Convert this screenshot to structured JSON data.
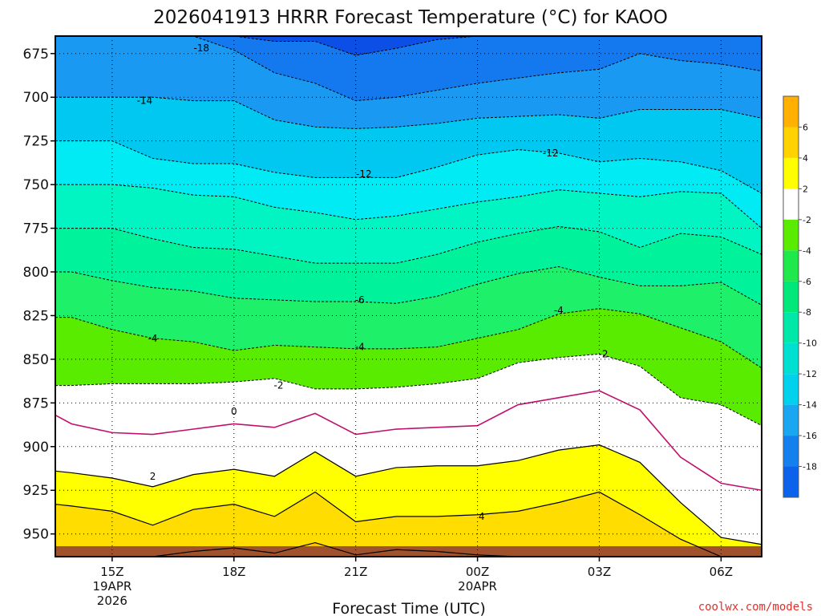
{
  "chart_data": {
    "type": "contour",
    "title": "2026041913 HRRR Forecast Temperature (°C) for KAOO",
    "xlabel": "Forecast Time (UTC)",
    "credit": "coolwx.com/models",
    "y_axis": {
      "ticks": [
        "675",
        "700",
        "725",
        "750",
        "775",
        "800",
        "825",
        "850",
        "875",
        "900",
        "925",
        "950"
      ],
      "range": [
        665,
        963
      ]
    },
    "x_axis": {
      "ticks": [
        {
          "line1": "15Z",
          "line2": "19APR",
          "line3": "2026"
        },
        {
          "line1": "18Z",
          "line2": "",
          "line3": ""
        },
        {
          "line1": "21Z",
          "line2": "",
          "line3": ""
        },
        {
          "line1": "00Z",
          "line2": "20APR",
          "line3": ""
        },
        {
          "line1": "03Z",
          "line2": "",
          "line3": ""
        },
        {
          "line1": "06Z",
          "line2": "",
          "line3": ""
        }
      ],
      "hours_from_start": [
        2,
        5,
        8,
        11,
        14,
        17
      ],
      "range_hours": [
        0.6,
        18.0
      ],
      "grid": true
    },
    "hours": [
      0.6,
      1.0,
      2.0,
      3.0,
      4.0,
      5.0,
      6.0,
      7.0,
      8.0,
      9.0,
      10.0,
      11.0,
      12.0,
      13.0,
      14.0,
      15.0,
      16.0,
      17.0,
      18.0
    ],
    "isotherms": [
      {
        "value": -18,
        "levels": [
          665,
          665,
          665,
          665,
          665,
          665,
          668,
          668,
          676,
          672,
          667,
          665,
          665,
          665,
          665,
          665,
          665,
          665,
          665
        ]
      },
      {
        "value": -16,
        "levels": [
          665,
          665,
          665,
          665,
          665,
          673,
          686,
          692,
          702,
          700,
          696,
          692,
          689,
          686,
          684,
          675,
          679,
          681,
          685
        ]
      },
      {
        "value": -14,
        "levels": [
          700,
          700,
          700,
          700,
          702,
          702,
          713,
          717,
          718,
          717,
          715,
          712,
          711,
          710,
          712,
          707,
          707,
          707,
          712
        ]
      },
      {
        "value": -12,
        "levels": [
          725,
          725,
          725,
          735,
          738,
          738,
          743,
          746,
          746,
          746,
          740,
          733,
          730,
          732,
          737,
          735,
          737,
          742,
          755
        ]
      },
      {
        "value": -10,
        "levels": [
          750,
          750,
          750,
          752,
          756,
          757,
          763,
          766,
          770,
          768,
          764,
          760,
          757,
          753,
          755,
          757,
          754,
          755,
          775
        ]
      },
      {
        "value": -8,
        "levels": [
          775,
          775,
          775,
          781,
          786,
          787,
          791,
          795,
          795,
          795,
          790,
          783,
          778,
          774,
          777,
          786,
          778,
          780,
          790
        ]
      },
      {
        "value": -6,
        "levels": [
          800,
          800,
          805,
          809,
          811,
          815,
          816,
          817,
          817,
          818,
          814,
          807,
          801,
          797,
          803,
          808,
          808,
          806,
          819
        ]
      },
      {
        "value": -4,
        "levels": [
          826,
          826,
          833,
          838,
          840,
          845,
          842,
          843,
          844,
          844,
          843,
          838,
          833,
          824,
          821,
          824,
          832,
          840,
          855
        ]
      },
      {
        "value": -2,
        "levels": [
          865,
          865,
          864,
          864,
          864,
          863,
          861,
          867,
          867,
          866,
          864,
          861,
          852,
          849,
          847,
          854,
          872,
          876,
          888
        ]
      },
      {
        "value": 0,
        "levels": [
          882,
          887,
          892,
          893,
          890,
          887,
          889,
          881,
          893,
          890,
          889,
          888,
          876,
          872,
          868,
          879,
          906,
          921,
          925
        ]
      },
      {
        "value": 2,
        "levels": [
          914,
          915,
          918,
          923,
          916,
          913,
          917,
          903,
          917,
          912,
          911,
          911,
          908,
          902,
          899,
          909,
          932,
          952,
          956
        ]
      },
      {
        "value": 4,
        "levels": [
          933,
          934,
          937,
          945,
          936,
          933,
          940,
          926,
          943,
          940,
          940,
          939,
          937,
          932,
          926,
          939,
          953,
          963,
          963
        ]
      },
      {
        "value": 6,
        "levels": [
          963,
          963,
          963,
          963,
          960,
          958,
          961,
          955,
          962,
          959,
          960,
          962,
          963,
          963,
          963,
          963,
          963,
          963,
          963
        ]
      }
    ],
    "fill_colors": {
      "-20": "#0b4fe6",
      "-18": "#1478ee",
      "-16": "#1a99f2",
      "-14": "#00c8f0",
      "-12": "#00ebf4",
      "-10": "#00f5c3",
      "-8": "#00f39a",
      "-6": "#1ef06a",
      "-4": "#5aec00",
      "-2": "#ffffff",
      "0": "#ffffff",
      "2": "#ffff00",
      "4": "#ffdd00",
      "6": "#ffc400"
    },
    "contour_labels": [
      {
        "text": "-18",
        "hour": 4.2,
        "level": 672
      },
      {
        "text": "-14",
        "hour": 2.8,
        "level": 702
      },
      {
        "text": "-12",
        "hour": 8.2,
        "level": 744
      },
      {
        "text": "-12",
        "hour": 12.8,
        "level": 732
      },
      {
        "text": "-6",
        "hour": 8.1,
        "level": 816
      },
      {
        "text": "-4",
        "hour": 3.0,
        "level": 838
      },
      {
        "text": "-4",
        "hour": 8.1,
        "level": 843
      },
      {
        "text": "-4",
        "hour": 13.0,
        "level": 822
      },
      {
        "text": "-2",
        "hour": 6.1,
        "level": 865
      },
      {
        "text": "-2",
        "hour": 14.1,
        "level": 847
      },
      {
        "text": "0",
        "hour": 5.0,
        "level": 880
      },
      {
        "text": "2",
        "hour": 3.0,
        "level": 917
      },
      {
        "text": "4",
        "hour": 11.1,
        "level": 940
      }
    ],
    "colorbar": {
      "labels": [
        "6",
        "4",
        "2",
        "-2",
        "-4",
        "-6",
        "-8",
        "-10",
        "-12",
        "-14",
        "-16",
        "-18"
      ],
      "colors": [
        "#ffb000",
        "#ffd200",
        "#ffff00",
        "#ffffff",
        "#5aec00",
        "#1ee84a",
        "#00e87a",
        "#00e8a8",
        "#00e0d0",
        "#00d2ee",
        "#1aa6f0",
        "#1480ee",
        "#0d62ec"
      ]
    },
    "ground_color": "#a0522d"
  }
}
